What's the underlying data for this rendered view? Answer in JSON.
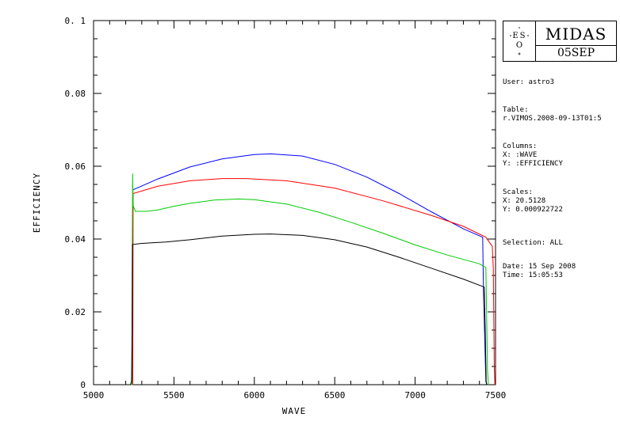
{
  "chart_data": {
    "type": "line",
    "xlabel": "WAVE",
    "ylabel": "EFFICIENCY",
    "xlim": [
      5000,
      7500
    ],
    "ylim": [
      0,
      0.1
    ],
    "x_ticks": [
      "5000",
      "5500",
      "6000",
      "6500",
      "7000",
      "7500"
    ],
    "y_ticks": [
      "0",
      "0.02",
      "0.04",
      "0.06",
      "0.08",
      "0. 1"
    ],
    "grid": false,
    "series": [
      {
        "color": "#0000ff",
        "points": [
          [
            5200,
            0
          ],
          [
            5242,
            0
          ],
          [
            5244,
            0.0535
          ],
          [
            5400,
            0.0565
          ],
          [
            5600,
            0.0598
          ],
          [
            5800,
            0.062
          ],
          [
            6000,
            0.0632
          ],
          [
            6100,
            0.0634
          ],
          [
            6300,
            0.0628
          ],
          [
            6500,
            0.0605
          ],
          [
            6700,
            0.057
          ],
          [
            6900,
            0.0525
          ],
          [
            7100,
            0.0475
          ],
          [
            7300,
            0.0428
          ],
          [
            7420,
            0.0405
          ],
          [
            7425,
            0.0258
          ],
          [
            7440,
            0.001
          ],
          [
            7445,
            0
          ]
        ]
      },
      {
        "color": "#ff0000",
        "points": [
          [
            5200,
            0
          ],
          [
            5244,
            0
          ],
          [
            5246,
            0.0525
          ],
          [
            5400,
            0.0545
          ],
          [
            5600,
            0.056
          ],
          [
            5800,
            0.0566
          ],
          [
            5950,
            0.0566
          ],
          [
            6200,
            0.056
          ],
          [
            6500,
            0.054
          ],
          [
            6800,
            0.0505
          ],
          [
            7100,
            0.0465
          ],
          [
            7300,
            0.0435
          ],
          [
            7440,
            0.0405
          ],
          [
            7480,
            0.038
          ],
          [
            7486,
            0.032
          ],
          [
            7492,
            0.005
          ],
          [
            7496,
            0
          ]
        ]
      },
      {
        "color": "#00cc00",
        "points": [
          [
            5200,
            0
          ],
          [
            5238,
            0
          ],
          [
            5240,
            0.032
          ],
          [
            5243,
            0.058
          ],
          [
            5246,
            0.0492
          ],
          [
            5260,
            0.0476
          ],
          [
            5330,
            0.0476
          ],
          [
            5400,
            0.048
          ],
          [
            5500,
            0.049
          ],
          [
            5600,
            0.0498
          ],
          [
            5750,
            0.0507
          ],
          [
            5900,
            0.051
          ],
          [
            6000,
            0.0508
          ],
          [
            6200,
            0.0496
          ],
          [
            6400,
            0.0474
          ],
          [
            6600,
            0.0446
          ],
          [
            6800,
            0.0416
          ],
          [
            7000,
            0.0384
          ],
          [
            7200,
            0.0356
          ],
          [
            7400,
            0.0332
          ],
          [
            7440,
            0.0322
          ],
          [
            7450,
            0.004
          ],
          [
            7456,
            0
          ]
        ]
      },
      {
        "color": "#000000",
        "points": [
          [
            5185,
            0
          ],
          [
            5230,
            0
          ],
          [
            5236,
            0.001
          ],
          [
            5240,
            0.015
          ],
          [
            5242,
            0.0385
          ],
          [
            5300,
            0.0388
          ],
          [
            5450,
            0.0392
          ],
          [
            5600,
            0.0398
          ],
          [
            5800,
            0.0408
          ],
          [
            6000,
            0.0413
          ],
          [
            6100,
            0.0414
          ],
          [
            6300,
            0.041
          ],
          [
            6500,
            0.0398
          ],
          [
            6700,
            0.0378
          ],
          [
            6900,
            0.035
          ],
          [
            7100,
            0.032
          ],
          [
            7300,
            0.029
          ],
          [
            7430,
            0.0268
          ],
          [
            7436,
            0.015
          ],
          [
            7442,
            0.001
          ],
          [
            7446,
            0
          ]
        ]
      }
    ]
  },
  "logo": {
    "name": "eso-logo",
    "letters": [
      "E",
      "S",
      "O"
    ]
  },
  "header": {
    "app_name": "MIDAS",
    "app_date": "05SEP"
  },
  "info": {
    "user_line": "User: astro3",
    "table_label": "Table:",
    "table_value": "r.VIMOS.2008-09-13T01:5",
    "columns_label": "Columns:",
    "columns_x": "X: :WAVE",
    "columns_y": "Y: :EFFICIENCY",
    "scales_label": "Scales:",
    "scales_x": "X: 20.5128",
    "scales_y": "Y: 0.000922722",
    "selection_line": "Selection:  ALL",
    "date_line": "Date: 15 Sep 2008",
    "time_line": "Time: 15:05:53"
  }
}
